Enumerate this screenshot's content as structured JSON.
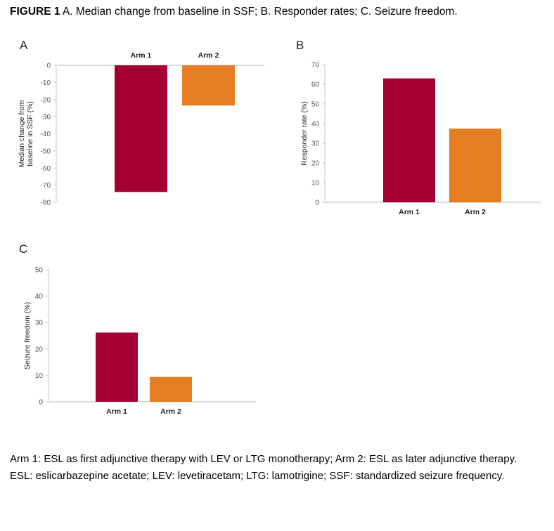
{
  "figure": {
    "label": "FIGURE 1",
    "caption": " A. Median change from baseline in SSF; B. Responder rates; C. Seizure freedom."
  },
  "colors": {
    "arm1": "#A50034",
    "arm2": "#E57E22",
    "axis": "#c8c8c8"
  },
  "chart_data": [
    {
      "panel": "A",
      "type": "bar",
      "title": "Median change from baseline in SSF",
      "categories": [
        "Arm 1",
        "Arm 2"
      ],
      "values": [
        -74,
        -23.5
      ],
      "xlabel": "",
      "ylabel": "Median change from baseline in SSF (%)",
      "ylabel_lines": [
        "Median change from",
        "baseline in SSF (%)"
      ],
      "ylim": [
        -80,
        0
      ],
      "yticks": [
        0,
        -10,
        -20,
        -30,
        -40,
        -50,
        -60,
        -70,
        -80
      ],
      "category_labels_position": "top",
      "grid": false,
      "legend": "none"
    },
    {
      "panel": "B",
      "type": "bar",
      "title": "Responder rates",
      "categories": [
        "Arm 1",
        "Arm 2"
      ],
      "values": [
        63,
        37.5
      ],
      "xlabel": "",
      "ylabel": "Responder rate (%)",
      "ylabel_lines": [
        "Responder rate (%)"
      ],
      "ylim": [
        0,
        70
      ],
      "yticks": [
        0,
        10,
        20,
        30,
        40,
        50,
        60,
        70
      ],
      "category_labels_position": "bottom",
      "grid": false,
      "legend": "none"
    },
    {
      "panel": "C",
      "type": "bar",
      "title": "Seizure freedom",
      "categories": [
        "Arm 1",
        "Arm 2"
      ],
      "values": [
        26.2,
        9.4
      ],
      "xlabel": "",
      "ylabel": "Seizure freedom (%)",
      "ylabel_lines": [
        "Seizure freedom (%)"
      ],
      "ylim": [
        0,
        50
      ],
      "yticks": [
        0,
        10,
        20,
        30,
        40,
        50
      ],
      "category_labels_position": "bottom",
      "grid": false,
      "legend": "none"
    }
  ],
  "footnote": {
    "line1": "Arm 1: ESL as first adjunctive therapy with LEV or LTG monotherapy; Arm 2: ESL as later adjunctive therapy.",
    "line2": "ESL: eslicarbazepine acetate; LEV: levetiracetam; LTG: lamotrigine; SSF: standardized seizure frequency."
  }
}
